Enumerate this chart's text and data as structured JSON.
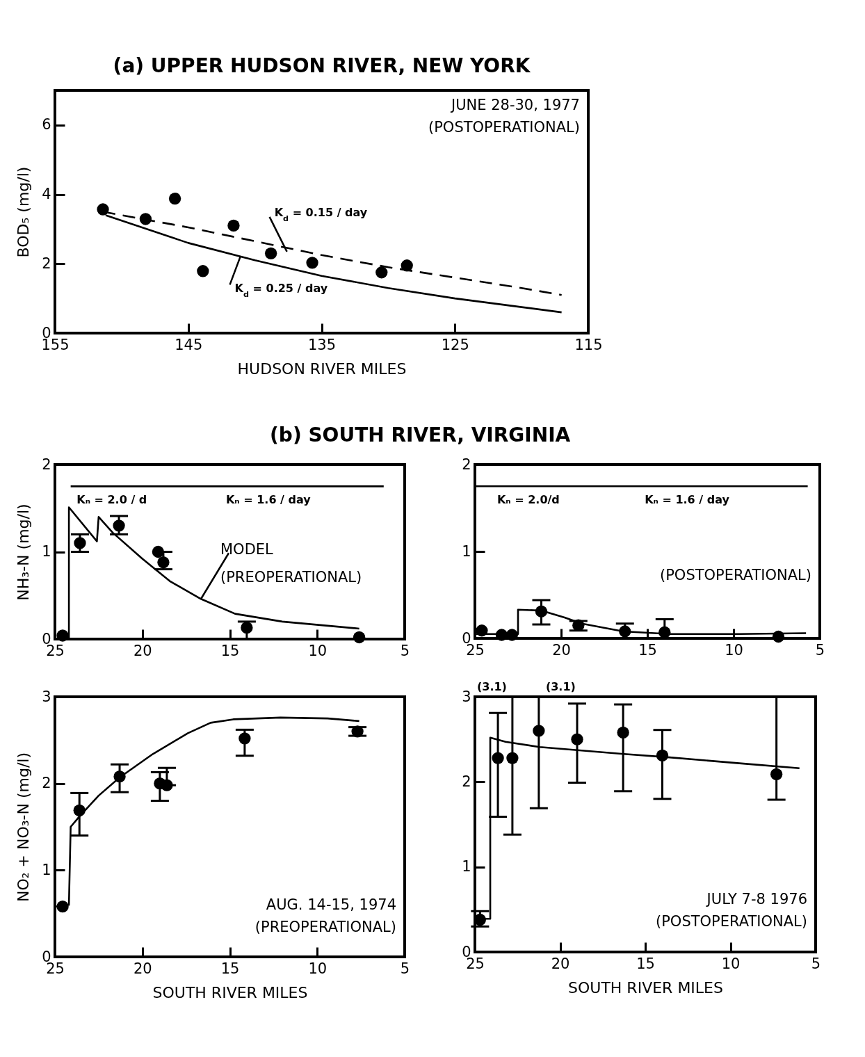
{
  "chart_data": [
    {
      "type": "scatter",
      "title": "(a) UPPER HUDSON RIVER, NEW YORK",
      "xlabel": "HUDSON RIVER MILES",
      "ylabel": "BOD₅ (mg/l)",
      "xlim": [
        155,
        115
      ],
      "xticks": [
        155,
        145,
        135,
        125,
        115
      ],
      "ylim": [
        0,
        7
      ],
      "yticks": [
        0,
        2,
        4,
        6
      ],
      "annotations": [
        "JUNE 28-30, 1977\n(POSTOPERATIONAL)",
        {
          "text": "K$_{d}$ = 0.15 / day",
          "x": 137.6,
          "y": 2.35
        },
        {
          "text": "K$_{d}$ = 0.25 / day",
          "x": 141.1,
          "y": 2.2
        }
      ],
      "series": [
        {
          "type": "scatter",
          "marker": "circle",
          "color": "#000000",
          "x": [
            151.4,
            148.2,
            146.0,
            143.9,
            141.6,
            138.8,
            135.7,
            130.5,
            128.6
          ],
          "values": [
            3.57,
            3.29,
            3.88,
            1.79,
            3.1,
            2.3,
            2.03,
            1.75,
            1.95
          ]
        },
        {
          "type": "line",
          "line_style": "dashed",
          "color": "#000000",
          "x": [
            151.4,
            145,
            140,
            135,
            130,
            125,
            120,
            117
          ],
          "values": [
            3.5,
            3.05,
            2.65,
            2.25,
            1.9,
            1.6,
            1.3,
            1.1
          ]
        },
        {
          "type": "line",
          "line_style": "solid",
          "color": "#000000",
          "x": [
            151.2,
            145,
            140,
            135,
            130,
            125,
            120,
            117
          ],
          "values": [
            3.4,
            2.6,
            2.1,
            1.65,
            1.3,
            1.0,
            0.75,
            0.6
          ]
        }
      ]
    },
    {
      "type": "scatter",
      "title": "(b) SOUTH RIVER, VIRGINIA",
      "ylabel": "NH₃-N (mg/l)",
      "xlim": [
        25,
        5
      ],
      "xticks": [
        25,
        20,
        15,
        10,
        5
      ],
      "ylim": [
        0,
        2
      ],
      "yticks": [
        0,
        1,
        2
      ],
      "annotations": [
        {
          "text": "MODEL\n(PREOPERATIONAL)",
          "x": 16.65,
          "y": 0.46
        },
        {
          "text": "Kₙ = 2.0 / d",
          "x": 21.75,
          "y": 1.75
        },
        {
          "text": "Kₙ = 1.6 / day",
          "x": 12.8,
          "y": 1.75
        }
      ],
      "series": [
        {
          "type": "scatter",
          "marker": "circle",
          "color": "#000000",
          "x": [
            24.56,
            23.57,
            21.34,
            19.1,
            18.8,
            14.03,
            7.6
          ],
          "values": [
            0.04,
            1.1,
            1.3,
            1.0,
            0.88,
            0.13,
            0.02
          ],
          "errors": [
            null,
            [
              1.0,
              1.2
            ],
            [
              1.2,
              1.41
            ],
            null,
            [
              0.8,
              1.0
            ],
            [
              0,
              0.2
            ],
            null
          ]
        },
        {
          "type": "line",
          "color": "#000000",
          "x": [
            24.1,
            19.4,
            6.2
          ],
          "values": [
            1.75,
            1.75,
            1.75
          ]
        },
        {
          "type": "line",
          "color": "#000000",
          "x": [
            24.2,
            24.2,
            22.6,
            22.5,
            21.7,
            20.0,
            18.4,
            16.65,
            14.7,
            12.0,
            7.6
          ],
          "values": [
            0,
            1.51,
            1.12,
            1.4,
            1.22,
            0.92,
            0.66,
            0.46,
            0.29,
            0.2,
            0.12
          ]
        }
      ]
    },
    {
      "type": "scatter",
      "xlim": [
        25,
        5
      ],
      "xticks": [
        25,
        20,
        15,
        10,
        5
      ],
      "ylim": [
        0,
        2
      ],
      "yticks": [
        0,
        1,
        2
      ],
      "annotations": [
        "(POSTOPERATIONAL)",
        {
          "text": "Kₙ = 2.0/d",
          "x": 21.9,
          "y": 1.75
        },
        {
          "text": "Kₙ = 1.6 / day",
          "x": 12.7,
          "y": 1.75
        }
      ],
      "series": [
        {
          "type": "scatter",
          "marker": "circle",
          "color": "#000000",
          "x": [
            24.6,
            23.45,
            22.85,
            21.15,
            19.0,
            16.3,
            14.0,
            7.4
          ],
          "values": [
            0.09,
            0.04,
            0.04,
            0.31,
            0.15,
            0.08,
            0.07,
            0.02
          ],
          "errors": [
            null,
            null,
            null,
            [
              0.16,
              0.44
            ],
            [
              0.09,
              0.2
            ],
            [
              0,
              0.17
            ],
            [
              0,
              0.22
            ],
            null
          ]
        },
        {
          "type": "line",
          "color": "#000000",
          "x": [
            25,
            19.7,
            5.7
          ],
          "values": [
            1.75,
            1.75,
            1.75
          ]
        },
        {
          "type": "line",
          "color": "#000000",
          "x": [
            25,
            22.5,
            22.5,
            21.15,
            19.8,
            18.8,
            16.4,
            13.7,
            9.7,
            5.8
          ],
          "values": [
            0.05,
            0.05,
            0.33,
            0.32,
            0.24,
            0.17,
            0.08,
            0.05,
            0.05,
            0.06
          ]
        }
      ]
    },
    {
      "type": "scatter",
      "xlabel": "SOUTH RIVER MILES",
      "ylabel": "NO₂ + NO₃-N (mg/l)",
      "xlim": [
        25,
        5
      ],
      "xticks": [
        25,
        20,
        15,
        10,
        5
      ],
      "ylim": [
        0,
        3
      ],
      "yticks": [
        0,
        1,
        2,
        3
      ],
      "annotations": [
        "AUG. 14-15, 1974\n(PREOPERATIONAL)"
      ],
      "series": [
        {
          "type": "scatter",
          "marker": "circle",
          "color": "#000000",
          "x": [
            24.56,
            23.6,
            21.3,
            19.0,
            18.6,
            14.15,
            7.7
          ],
          "values": [
            0.58,
            1.69,
            2.08,
            2.0,
            1.98,
            2.52,
            2.6
          ],
          "errors": [
            null,
            [
              1.4,
              1.89
            ],
            [
              1.9,
              2.22
            ],
            [
              1.8,
              2.13
            ],
            [
              1.98,
              2.18
            ],
            [
              2.32,
              2.62
            ],
            [
              2.55,
              2.65
            ]
          ]
        },
        {
          "type": "line",
          "color": "#000000",
          "x": [
            25,
            24.2,
            24.1,
            23.6,
            22.5,
            21.3,
            19.4,
            17.4,
            16.1,
            14.8,
            12.1,
            9.4,
            7.6
          ],
          "values": [
            0.58,
            0.6,
            1.5,
            1.62,
            1.86,
            2.07,
            2.34,
            2.58,
            2.7,
            2.74,
            2.76,
            2.75,
            2.72
          ]
        }
      ]
    },
    {
      "type": "scatter",
      "xlabel": "SOUTH RIVER MILES",
      "xlim": [
        25,
        5
      ],
      "xticks": [
        25,
        20,
        15,
        10,
        5
      ],
      "ylim": [
        0,
        3
      ],
      "yticks": [
        0,
        1,
        2,
        3
      ],
      "annotations": [
        "JULY 7-8 1976\n(POSTOPERATIONAL)",
        {
          "text": "(3.1)",
          "x": 22.8,
          "y": 3
        },
        {
          "text": "(3.1)",
          "x": 21.25,
          "y": 3
        }
      ],
      "series": [
        {
          "type": "scatter",
          "marker": "circle",
          "color": "#000000",
          "x": [
            24.7,
            23.65,
            22.8,
            21.25,
            19.0,
            16.3,
            14.0,
            7.3
          ],
          "values": [
            0.38,
            2.28,
            2.28,
            2.6,
            2.5,
            2.58,
            2.31,
            2.09
          ],
          "errors": [
            [
              0.3,
              0.48
            ],
            [
              1.59,
              2.81
            ],
            [
              1.38,
              3
            ],
            [
              1.69,
              3
            ],
            [
              1.99,
              2.92
            ],
            [
              1.89,
              2.91
            ],
            [
              1.8,
              2.61
            ],
            [
              1.79,
              3
            ]
          ]
        },
        {
          "type": "line",
          "color": "#000000",
          "x": [
            25,
            24.1,
            24.1,
            23.2,
            21.2,
            16.4,
            13.7,
            9.6,
            5.95
          ],
          "values": [
            0.39,
            0.39,
            2.52,
            2.47,
            2.41,
            2.33,
            2.29,
            2.22,
            2.16
          ]
        }
      ]
    }
  ]
}
